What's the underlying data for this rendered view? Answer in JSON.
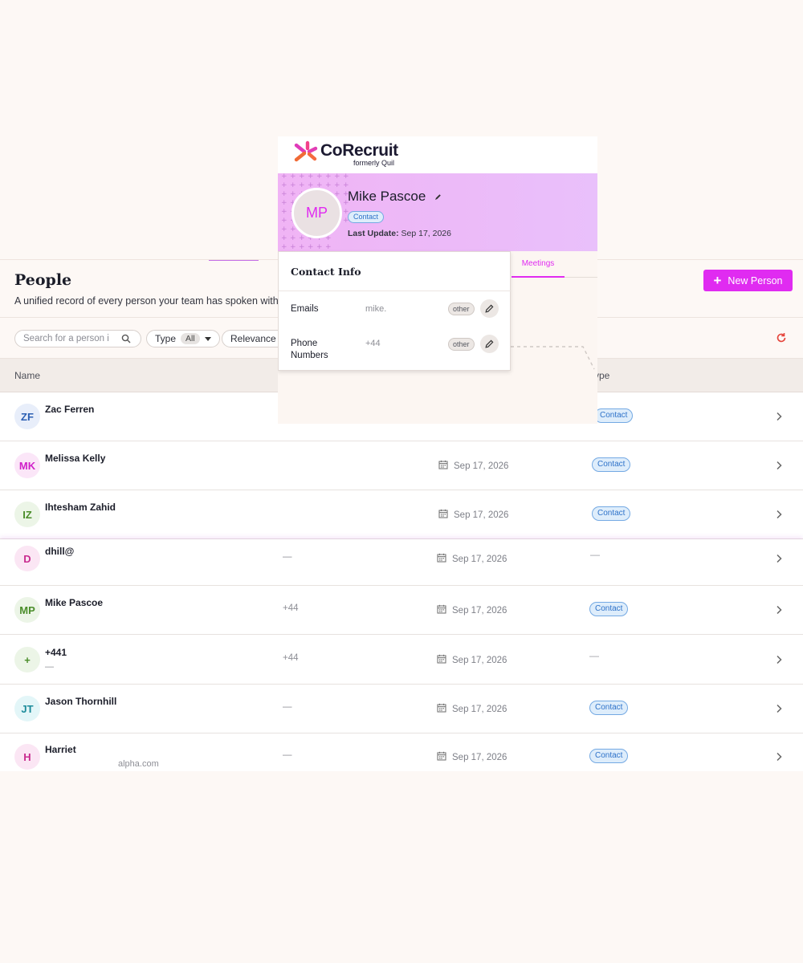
{
  "brand": {
    "name": "CoRecruit",
    "subtitle": "formerly Quil"
  },
  "profile": {
    "initials": "MP",
    "name": "Mike Pascoe",
    "type_badge": "Contact",
    "last_update_label": "Last Update:",
    "last_update_value": "Sep 17, 2026"
  },
  "tabs": {
    "meetings": "Meetings"
  },
  "contact_info": {
    "title": "Contact Info",
    "emails_label": "Emails",
    "emails_value": "mike.",
    "emails_chip": "other",
    "phone_label_1": "Phone",
    "phone_label_2": "Numbers",
    "phone_value": "+44",
    "phone_chip": "other"
  },
  "page": {
    "title": "People",
    "subtitle": "A unified record of every person your team has spoken with.",
    "new_button": "New Person",
    "search_placeholder": "Search for a person i",
    "filter_type_label": "Type",
    "filter_type_value": "All",
    "filter_relevance": "Relevance"
  },
  "table": {
    "col_name": "Name",
    "col_type": "ype",
    "rows": [
      {
        "initials": "ZF",
        "name": "Zac Ferren",
        "phone": "",
        "date": "",
        "type": "Contact",
        "avatar_bg": "#e8eefa",
        "avatar_fg": "#2b5fb3"
      },
      {
        "initials": "MK",
        "name": "Melissa Kelly",
        "phone": "",
        "date": "Sep 17, 2026",
        "type": "Contact",
        "avatar_bg": "#fbe6f8",
        "avatar_fg": "#d020c9"
      },
      {
        "initials": "IZ",
        "name": "Ihtesham Zahid",
        "phone": "",
        "date": "Sep 17, 2026",
        "type": "Contact",
        "avatar_bg": "#ecf5e7",
        "avatar_fg": "#4a8d2a"
      },
      {
        "initials": "D",
        "name": "dhill@",
        "phone": "—",
        "date": "Sep 17, 2026",
        "type": "—",
        "avatar_bg": "#fbe6f4",
        "avatar_fg": "#c92c8f"
      },
      {
        "initials": "MP",
        "name": "Mike Pascoe",
        "phone": "+44",
        "date": "Sep 17, 2026",
        "type": "Contact",
        "avatar_bg": "#ecf5e7",
        "avatar_fg": "#4a8d2a"
      },
      {
        "initials": "+",
        "name": "+441",
        "sub": "—",
        "phone": "+44",
        "date": "Sep 17, 2026",
        "type": "—",
        "avatar_bg": "#ecf5e7",
        "avatar_fg": "#4a8d2a"
      },
      {
        "initials": "JT",
        "name": "Jason Thornhill",
        "phone": "—",
        "date": "Sep 17, 2026",
        "type": "Contact",
        "avatar_bg": "#e3f6f8",
        "avatar_fg": "#1b8b9a"
      },
      {
        "initials": "H",
        "name": "Harriet",
        "sub": "alpha.com",
        "phone": "—",
        "date": "Sep 17, 2026",
        "type": "Contact",
        "avatar_bg": "#fbe6f4",
        "avatar_fg": "#c92c8f"
      }
    ]
  },
  "colors": {
    "accent": "#e02bf1",
    "badge_blue": "#2e72c9",
    "refresh": "#e5443b"
  }
}
